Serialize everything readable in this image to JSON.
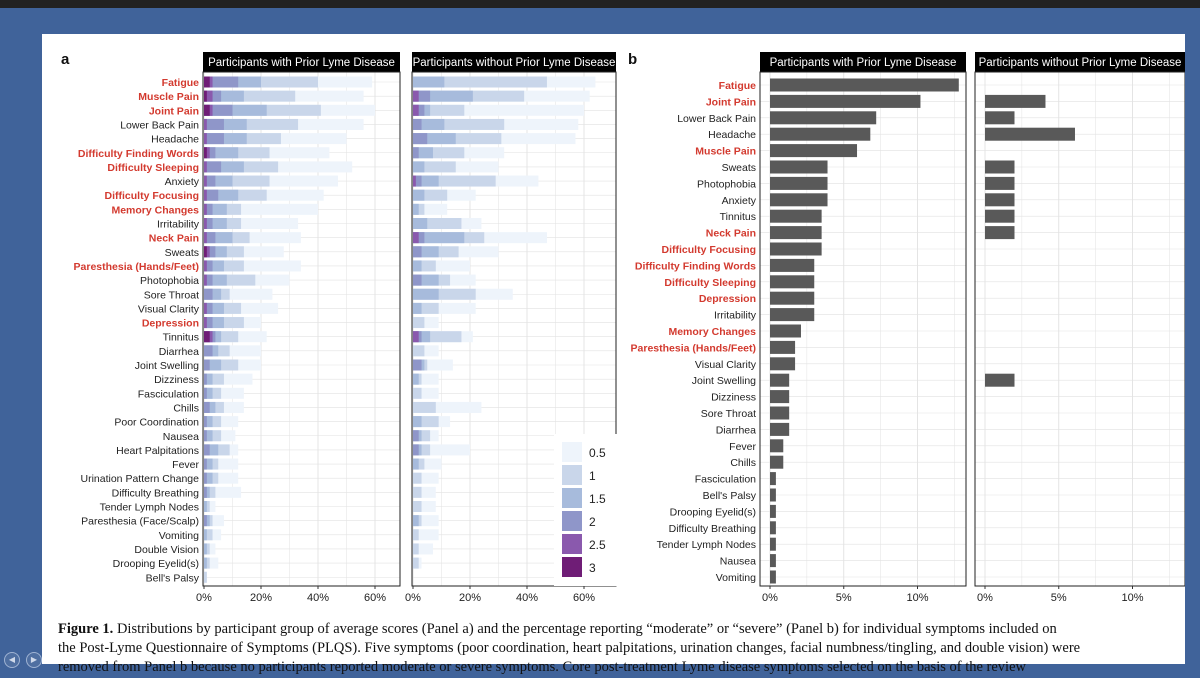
{
  "panels": {
    "a_letter": "a",
    "b_letter": "b",
    "header_with": "Participants with Prior Lyme Disease",
    "header_without": "Participants without Prior Lyme Disease"
  },
  "caption": {
    "label": "Figure 1.",
    "line1": "Distributions by participant group of average scores (Panel a) and the percentage reporting “moderate” or “severe” (Panel b) for individual symptoms included on",
    "line2": "the Post-Lyme Questionnaire of Symptoms (PLQS). Five symptoms (poor coordination, heart palpitations, urination changes, facial numbness/tingling, and double vision) were",
    "line3": "removed from Panel b because no participants reported moderate or severe symptoms. Core post-treatment Lyme disease symptoms selected on the basis of the review"
  },
  "colors": {
    "highlight": "#d33a2f",
    "normal": "#222222",
    "bar_b": "#595959",
    "header_bg": "#000000",
    "header_text": "#ffffff",
    "grid": "#e2e2e2",
    "score_colors": [
      "#eef4fb",
      "#c9d6ea",
      "#a7bbdc",
      "#8f96c9",
      "#8a59ad",
      "#6f1d76"
    ]
  },
  "chart_data": [
    {
      "type": "bar",
      "panel": "a",
      "orientation": "horizontal",
      "stacked": true,
      "x_ticks": [
        "0%",
        "20%",
        "40%",
        "60%"
      ],
      "xlim": [
        0,
        70
      ],
      "legend_title": "",
      "legend_labels": [
        "0.5",
        "1",
        "1.5",
        "2",
        "2.5",
        "3"
      ],
      "legend_position": "bottom-right of second facet",
      "categories": [
        "Fatigue",
        "Muscle Pain",
        "Joint Pain",
        "Lower Back Pain",
        "Headache",
        "Difficulty Finding Words",
        "Difficulty Sleeping",
        "Anxiety",
        "Difficulty Focusing",
        "Memory Changes",
        "Irritability",
        "Neck Pain",
        "Sweats",
        "Paresthesia (Hands/Feet)",
        "Photophobia",
        "Sore Throat",
        "Visual Clarity",
        "Depression",
        "Tinnitus",
        "Diarrhea",
        "Joint Swelling",
        "Dizziness",
        "Fasciculation",
        "Chills",
        "Poor Coordination",
        "Nausea",
        "Heart Palpitations",
        "Fever",
        "Urination Pattern Change",
        "Difficulty Breathing",
        "Tender Lymph Nodes",
        "Paresthesia (Face/Scalp)",
        "Vomiting",
        "Double Vision",
        "Drooping Eyelid(s)",
        "Bell's Palsy"
      ],
      "highlighted": [
        "Fatigue",
        "Muscle Pain",
        "Joint Pain",
        "Difficulty Finding Words",
        "Difficulty Sleeping",
        "Difficulty Focusing",
        "Memory Changes",
        "Neck Pain",
        "Paresthesia (Hands/Feet)",
        "Depression"
      ],
      "series_score_levels": [
        0.5,
        1,
        1.5,
        2,
        2.5,
        3
      ],
      "facets": [
        {
          "name": "Participants with Prior Lyme Disease",
          "values": [
            [
              59,
              40,
              20,
              12,
              3,
              2
            ],
            [
              56,
              32,
              14,
              6,
              3,
              1
            ],
            [
              60,
              41,
              22,
              10,
              3,
              2
            ],
            [
              56,
              33,
              15,
              7,
              1,
              0
            ],
            [
              50,
              27,
              15,
              7,
              1,
              0
            ],
            [
              44,
              23,
              12,
              4,
              2,
              1
            ],
            [
              52,
              26,
              14,
              6,
              1,
              0
            ],
            [
              47,
              23,
              10,
              4,
              1,
              0
            ],
            [
              42,
              22,
              12,
              5,
              1,
              0
            ],
            [
              40,
              13,
              8,
              3,
              1,
              0
            ],
            [
              33,
              13,
              8,
              3,
              1,
              0
            ],
            [
              34,
              16,
              10,
              4,
              1,
              0
            ],
            [
              28,
              14,
              8,
              4,
              2,
              1
            ],
            [
              34,
              14,
              7,
              3,
              1,
              0
            ],
            [
              30,
              18,
              8,
              3,
              1,
              0
            ],
            [
              24,
              9,
              6,
              3,
              0,
              0
            ],
            [
              26,
              13,
              7,
              3,
              1,
              0
            ],
            [
              20,
              14,
              7,
              3,
              1,
              0
            ],
            [
              22,
              12,
              6,
              4,
              3,
              2
            ],
            [
              20,
              9,
              5,
              3,
              0,
              0
            ],
            [
              20,
              12,
              6,
              2,
              0,
              0
            ],
            [
              17,
              7,
              3,
              1,
              0,
              0
            ],
            [
              14,
              6,
              3,
              1,
              0,
              0
            ],
            [
              14,
              7,
              4,
              2,
              0,
              0
            ],
            [
              12,
              6,
              3,
              1,
              0,
              0
            ],
            [
              11,
              6,
              3,
              1,
              0,
              0
            ],
            [
              12,
              9,
              5,
              2,
              0,
              0
            ],
            [
              12,
              5,
              3,
              1,
              0,
              0
            ],
            [
              12,
              5,
              3,
              1,
              0,
              0
            ],
            [
              13,
              4,
              2,
              1,
              0,
              0
            ],
            [
              4,
              2,
              1,
              0,
              0,
              0
            ],
            [
              7,
              3,
              2,
              1,
              0,
              0
            ],
            [
              6,
              3,
              1,
              0,
              0,
              0
            ],
            [
              4,
              2,
              1,
              0,
              0,
              0
            ],
            [
              5,
              2,
              1,
              0,
              0,
              0
            ],
            [
              1,
              1,
              0,
              0,
              0,
              0
            ]
          ]
        },
        {
          "name": "Participants without Prior Lyme Disease",
          "values": [
            [
              64,
              47,
              11,
              0,
              0,
              0
            ],
            [
              62,
              39,
              21,
              6,
              2,
              0
            ],
            [
              60,
              18,
              6,
              4,
              2,
              0
            ],
            [
              58,
              32,
              11,
              3,
              0,
              0
            ],
            [
              57,
              31,
              15,
              5,
              0,
              0
            ],
            [
              32,
              18,
              7,
              2,
              0,
              0
            ],
            [
              30,
              15,
              4,
              0,
              0,
              0
            ],
            [
              44,
              29,
              9,
              3,
              1,
              0
            ],
            [
              22,
              12,
              4,
              0,
              0,
              0
            ],
            [
              12,
              4,
              2,
              0,
              0,
              0
            ],
            [
              24,
              17,
              5,
              0,
              0,
              0
            ],
            [
              47,
              25,
              18,
              4,
              2,
              0
            ],
            [
              30,
              16,
              9,
              3,
              0,
              0
            ],
            [
              20,
              8,
              3,
              0,
              0,
              0
            ],
            [
              22,
              13,
              9,
              3,
              0,
              0
            ],
            [
              35,
              22,
              9,
              0,
              0,
              0
            ],
            [
              22,
              9,
              3,
              0,
              0,
              0
            ],
            [
              9,
              4,
              0,
              0,
              0,
              0
            ],
            [
              21,
              17,
              6,
              3,
              2,
              0
            ],
            [
              9,
              4,
              0,
              0,
              0,
              0
            ],
            [
              14,
              5,
              4,
              3,
              0,
              0
            ],
            [
              9,
              3,
              2,
              0,
              0,
              0
            ],
            [
              9,
              3,
              0,
              0,
              0,
              0
            ],
            [
              24,
              8,
              0,
              0,
              0,
              0
            ],
            [
              13,
              9,
              3,
              0,
              0,
              0
            ],
            [
              9,
              6,
              3,
              2,
              0,
              0
            ],
            [
              20,
              6,
              3,
              2,
              0,
              0
            ],
            [
              10,
              4,
              2,
              0,
              0,
              0
            ],
            [
              9,
              3,
              0,
              0,
              0,
              0
            ],
            [
              8,
              3,
              0,
              0,
              0,
              0
            ],
            [
              8,
              3,
              0,
              0,
              0,
              0
            ],
            [
              9,
              3,
              2,
              0,
              0,
              0
            ],
            [
              9,
              2,
              0,
              0,
              0,
              0
            ],
            [
              7,
              2,
              0,
              0,
              0,
              0
            ],
            [
              3,
              2,
              0,
              0,
              0,
              0
            ],
            [
              0,
              0,
              0,
              0,
              0,
              0
            ]
          ]
        }
      ]
    },
    {
      "type": "bar",
      "panel": "b",
      "orientation": "horizontal",
      "x_ticks": [
        "0%",
        "5%",
        "10%"
      ],
      "xlim": [
        0,
        13.3
      ],
      "categories": [
        "Fatigue",
        "Joint Pain",
        "Lower Back Pain",
        "Headache",
        "Muscle Pain",
        "Sweats",
        "Photophobia",
        "Anxiety",
        "Tinnitus",
        "Neck Pain",
        "Difficulty Focusing",
        "Difficulty Finding Words",
        "Difficulty Sleeping",
        "Depression",
        "Irritability",
        "Memory Changes",
        "Paresthesia (Hands/Feet)",
        "Visual Clarity",
        "Joint Swelling",
        "Dizziness",
        "Sore Throat",
        "Diarrhea",
        "Fever",
        "Chills",
        "Fasciculation",
        "Bell's Palsy",
        "Drooping Eyelid(s)",
        "Difficulty Breathing",
        "Tender Lymph Nodes",
        "Nausea",
        "Vomiting"
      ],
      "highlighted": [
        "Fatigue",
        "Joint Pain",
        "Muscle Pain",
        "Neck Pain",
        "Difficulty Focusing",
        "Difficulty Finding Words",
        "Difficulty Sleeping",
        "Depression",
        "Memory Changes",
        "Paresthesia (Hands/Feet)"
      ],
      "facets": [
        {
          "name": "Participants with Prior Lyme Disease",
          "values": [
            12.8,
            10.2,
            7.2,
            6.8,
            5.9,
            3.9,
            3.9,
            3.9,
            3.5,
            3.5,
            3.5,
            3.0,
            3.0,
            3.0,
            3.0,
            2.1,
            1.7,
            1.7,
            1.3,
            1.3,
            1.3,
            1.3,
            0.9,
            0.9,
            0.4,
            0.4,
            0.4,
            0.4,
            0.4,
            0.4,
            0.4
          ]
        },
        {
          "name": "Participants without Prior Lyme Disease",
          "values": [
            0,
            4.1,
            2.0,
            6.1,
            0,
            2.0,
            2.0,
            2.0,
            2.0,
            2.0,
            0,
            0,
            0,
            0,
            0,
            0,
            0,
            0,
            2.0,
            0,
            0,
            0,
            0,
            0,
            0,
            0,
            0,
            0,
            0,
            0,
            0
          ]
        }
      ]
    }
  ]
}
